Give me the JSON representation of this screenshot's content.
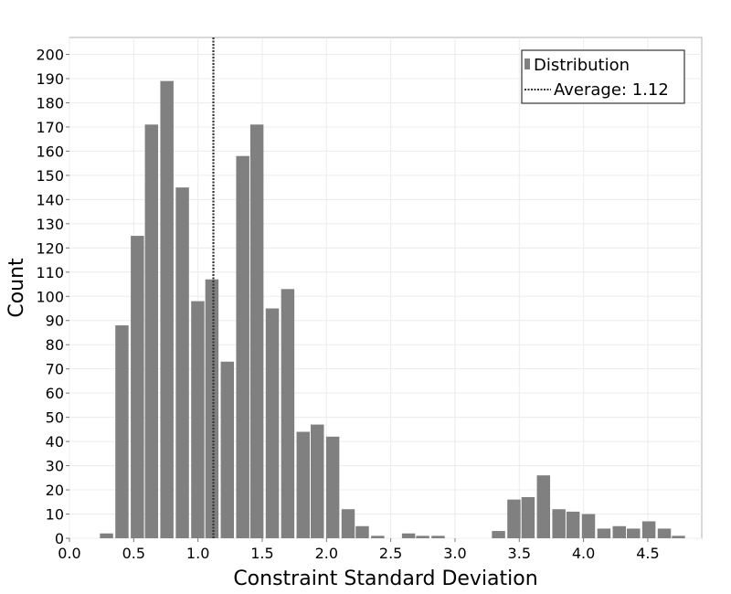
{
  "chart_data": {
    "type": "bar",
    "title": "",
    "xlabel": "Constraint Standard Deviation",
    "ylabel": "Count",
    "xlim": [
      0.0,
      4.92
    ],
    "ylim": [
      0,
      207
    ],
    "x_ticks": [
      0.0,
      0.5,
      1.0,
      1.5,
      2.0,
      2.5,
      3.0,
      3.5,
      4.0,
      4.5
    ],
    "x_tick_labels": [
      "0.0",
      "0.5",
      "1.0",
      "1.5",
      "2.0",
      "2.5",
      "3.0",
      "3.5",
      "4.0",
      "4.5"
    ],
    "y_ticks": [
      0,
      10,
      20,
      30,
      40,
      50,
      60,
      70,
      80,
      90,
      100,
      110,
      120,
      130,
      140,
      150,
      160,
      170,
      180,
      190,
      200
    ],
    "y_tick_labels": [
      "0",
      "10",
      "20",
      "30",
      "40",
      "50",
      "60",
      "70",
      "80",
      "90",
      "100",
      "110",
      "120",
      "130",
      "140",
      "150",
      "160",
      "170",
      "180",
      "190",
      "200"
    ],
    "grid": true,
    "legend_position": "top-right",
    "bar_color": "#808080",
    "bin_width": 0.117,
    "bin_starts": [
      0.23,
      0.35,
      0.47,
      0.58,
      0.7,
      0.82,
      0.94,
      1.05,
      1.17,
      1.29,
      1.4,
      1.52,
      1.64,
      1.76,
      1.87,
      1.99,
      2.11,
      2.22,
      2.34,
      2.46,
      2.58,
      2.69,
      2.81,
      2.93,
      3.04,
      3.16,
      3.28,
      3.4,
      3.51,
      3.63,
      3.75,
      3.86,
      3.98,
      4.1,
      4.22,
      4.33,
      4.45,
      4.57,
      4.68,
      4.8
    ],
    "series": [
      {
        "name": "Distribution",
        "values": [
          2,
          88,
          125,
          171,
          189,
          145,
          98,
          107,
          73,
          158,
          171,
          95,
          103,
          44,
          47,
          42,
          12,
          5,
          1,
          0,
          2,
          1,
          1,
          0,
          0,
          0,
          3,
          16,
          17,
          26,
          12,
          11,
          10,
          4,
          5,
          4,
          7,
          4,
          1,
          0
        ]
      }
    ],
    "average_line": {
      "name": "Average: 1.12",
      "value": 1.12,
      "color": "#333333"
    }
  }
}
